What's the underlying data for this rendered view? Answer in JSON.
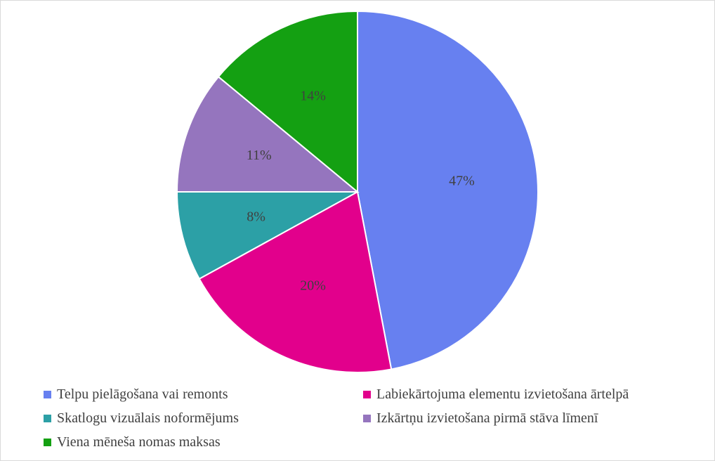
{
  "chart_data": {
    "type": "pie",
    "categories": [
      "Telpu pielāgošana vai remonts",
      "Labiekārtojuma elementu izvietošana ārtelpā",
      "Skatlogu vizuālais noformējums",
      "Izkārtņu izvietošana pirmā stāva līmenī",
      "Viena mēneša nomas maksas"
    ],
    "values": [
      47,
      20,
      8,
      11,
      14
    ],
    "labels": [
      "47%",
      "20%",
      "8%",
      "11%",
      "14%"
    ],
    "colors": [
      "#6780F0",
      "#E2008C",
      "#2CA0A6",
      "#9575BE",
      "#14A012"
    ],
    "start_angle": "12 o'clock",
    "direction": "clockwise",
    "legend_position": "bottom",
    "title": ""
  }
}
